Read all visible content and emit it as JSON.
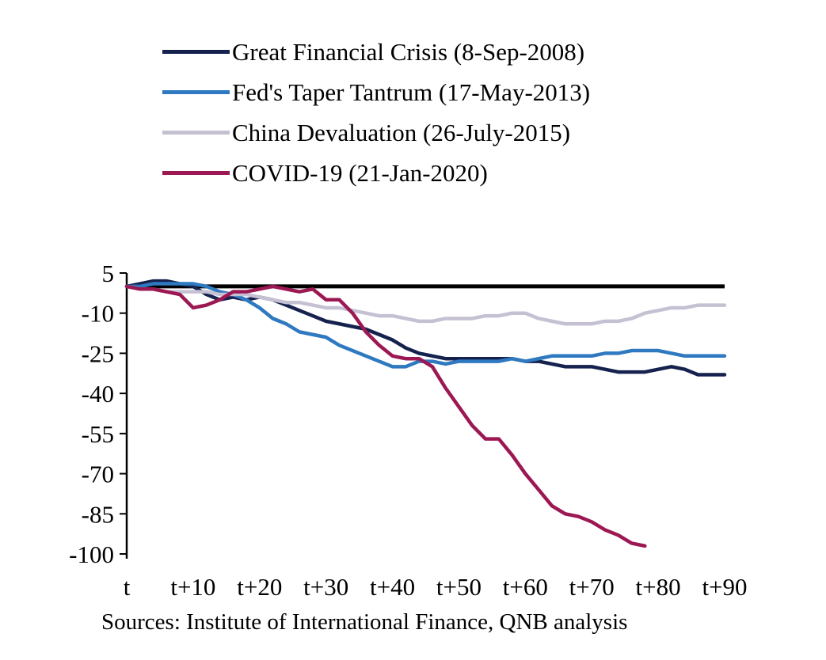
{
  "chart_data": {
    "type": "line",
    "title": "",
    "xlabel": "",
    "ylabel": "",
    "grid": false,
    "legend_position": "top-left",
    "xlim": [
      0,
      90
    ],
    "ylim": [
      -100,
      5
    ],
    "x": [
      0,
      2,
      4,
      6,
      8,
      10,
      12,
      14,
      16,
      18,
      20,
      22,
      24,
      26,
      28,
      30,
      32,
      34,
      36,
      38,
      40,
      42,
      44,
      46,
      48,
      50,
      52,
      54,
      56,
      58,
      60,
      62,
      64,
      66,
      68,
      70,
      72,
      74,
      76,
      78,
      80,
      82,
      84,
      86,
      88,
      90
    ],
    "x_tick_positions": [
      0,
      10,
      20,
      30,
      40,
      50,
      60,
      70,
      80,
      90
    ],
    "x_tick_labels": [
      "t",
      "t+10",
      "t+20",
      "t+30",
      "t+40",
      "t+50",
      "t+60",
      "t+70",
      "t+80",
      "t+90"
    ],
    "y_ticks": [
      5,
      -10,
      -25,
      -40,
      -55,
      -70,
      -85,
      -100
    ],
    "series": [
      {
        "name": "Great Financial Crisis (8-Sep-2008)",
        "color": "#15224e",
        "values": [
          0,
          1,
          2,
          2,
          1,
          0,
          -3,
          -5,
          -4,
          -5,
          -4,
          -5,
          -7,
          -9,
          -11,
          -13,
          -14,
          -15,
          -16,
          -18,
          -20,
          -23,
          -25,
          -26,
          -27,
          -27,
          -27,
          -27,
          -27,
          -27,
          -28,
          -28,
          -29,
          -30,
          -30,
          -30,
          -31,
          -32,
          -32,
          -32,
          -31,
          -30,
          -31,
          -33,
          -33,
          -33
        ]
      },
      {
        "name": "Fed's Taper Tantrum (17-May-2013)",
        "color": "#2e79c0",
        "values": [
          0,
          0,
          1,
          1,
          1,
          1,
          0,
          -2,
          -3,
          -5,
          -8,
          -12,
          -14,
          -17,
          -18,
          -19,
          -22,
          -24,
          -26,
          -28,
          -30,
          -30,
          -28,
          -28,
          -29,
          -28,
          -28,
          -28,
          -28,
          -27,
          -28,
          -27,
          -26,
          -26,
          -26,
          -26,
          -25,
          -25,
          -24,
          -24,
          -24,
          -25,
          -26,
          -26,
          -26,
          -26
        ]
      },
      {
        "name": "China Devaluation (26-July-2015)",
        "color": "#c5c1d3",
        "values": [
          0,
          -1,
          -1,
          -2,
          -2,
          -2,
          -2,
          -3,
          -3,
          -3,
          -4,
          -5,
          -6,
          -6,
          -7,
          -8,
          -8,
          -9,
          -10,
          -11,
          -11,
          -12,
          -13,
          -13,
          -12,
          -12,
          -12,
          -11,
          -11,
          -10,
          -10,
          -12,
          -13,
          -14,
          -14,
          -14,
          -13,
          -13,
          -12,
          -10,
          -9,
          -8,
          -8,
          -7,
          -7,
          -7
        ]
      },
      {
        "name": "COVID-19 (21-Jan-2020)",
        "color": "#9c1853",
        "values": [
          0,
          -1,
          -1,
          -2,
          -3,
          -8,
          -7,
          -5,
          -2,
          -2,
          -1,
          0,
          -1,
          -2,
          -1,
          -5,
          -5,
          -10,
          -17,
          -22,
          -26,
          -27,
          -27,
          -30,
          -38,
          -45,
          -52,
          -57,
          -57,
          -63,
          -70,
          -76,
          -82,
          -85,
          -86,
          -88,
          -91,
          -93,
          -96,
          -97,
          null,
          null,
          null,
          null,
          null,
          null
        ]
      }
    ],
    "source_note": "Sources: Institute of International Finance, QNB analysis"
  }
}
